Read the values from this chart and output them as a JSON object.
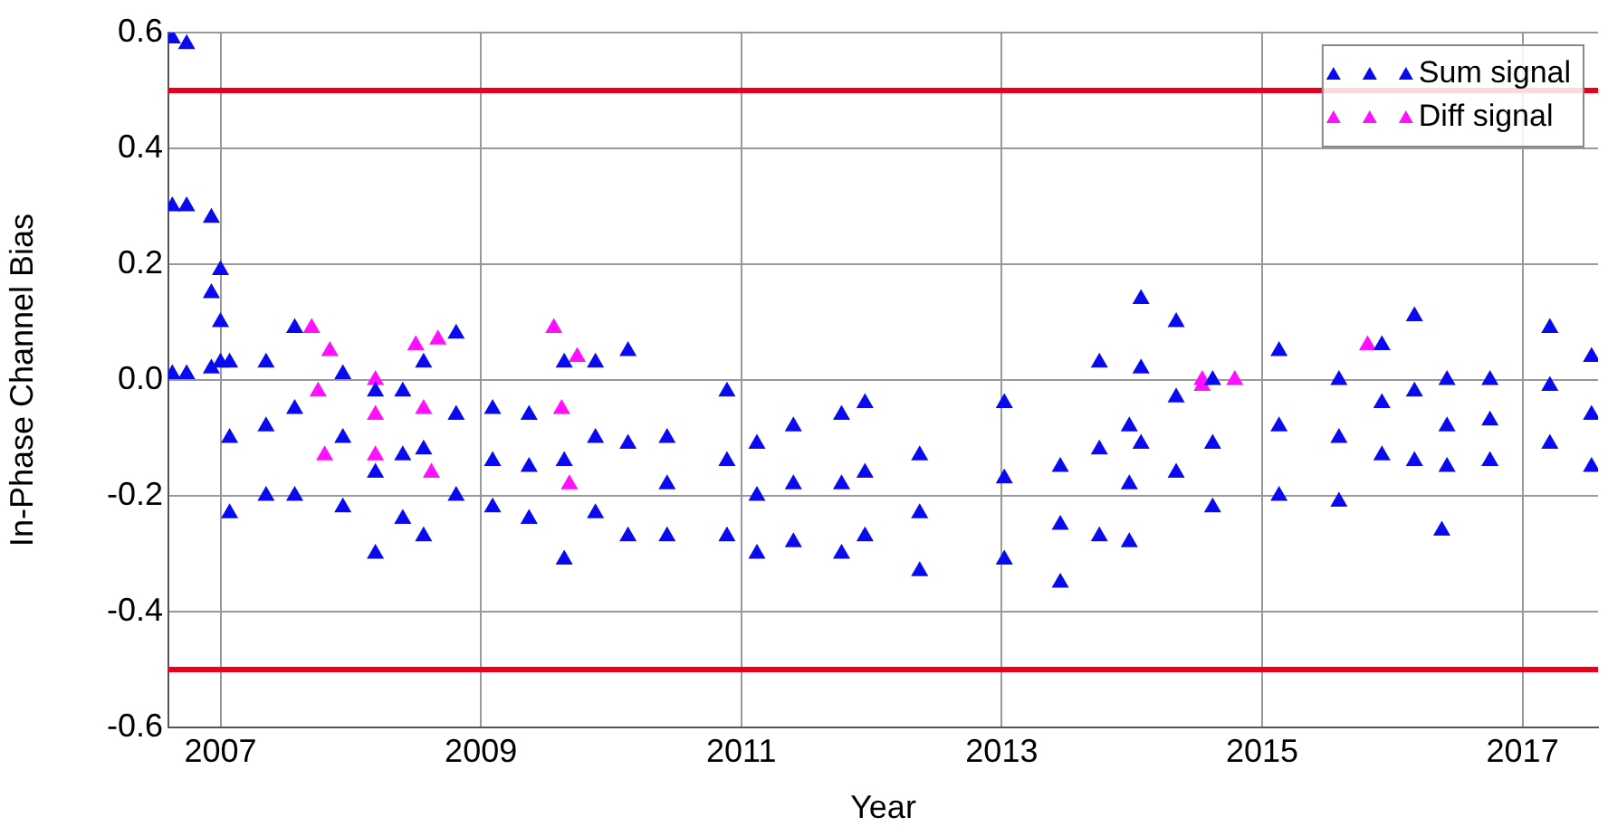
{
  "chart_data": {
    "type": "scatter",
    "xlabel": "Year",
    "ylabel": "In-Phase Channel Bias",
    "xlim": [
      2006.6,
      2017.58
    ],
    "xticks": [
      2007,
      2009,
      2011,
      2013,
      2015,
      2017
    ],
    "ylim": [
      -0.6,
      0.6
    ],
    "yticks": [
      -0.6,
      -0.4,
      -0.2,
      {
        "value": 0,
        "label": "0.0"
      },
      0.2,
      0.4,
      0.6
    ],
    "grid": true,
    "legend": "top right",
    "marker": "triangle",
    "ref_lines": [
      {
        "axis": "y",
        "value": 0.5,
        "color": "#e8001c"
      },
      {
        "axis": "y",
        "value": -0.5,
        "color": "#e8001c"
      }
    ],
    "series": [
      {
        "name": "Sum signal",
        "color": "#0a0af0",
        "x": [
          2006.63,
          2006.63,
          2006.63,
          2006.74,
          2006.74,
          2006.74,
          2006.93,
          2006.93,
          2006.93,
          2007.0,
          2007.0,
          2007.0,
          2007.07,
          2007.07,
          2007.07,
          2007.35,
          2007.35,
          2007.35,
          2007.57,
          2007.57,
          2007.57,
          2007.94,
          2007.94,
          2007.94,
          2008.19,
          2008.19,
          2008.19,
          2008.4,
          2008.4,
          2008.4,
          2008.56,
          2008.56,
          2008.56,
          2008.81,
          2008.81,
          2008.81,
          2009.09,
          2009.09,
          2009.09,
          2009.37,
          2009.37,
          2009.37,
          2009.64,
          2009.64,
          2009.64,
          2009.88,
          2009.88,
          2009.88,
          2010.13,
          2010.13,
          2010.13,
          2010.43,
          2010.43,
          2010.43,
          2010.89,
          2010.89,
          2010.89,
          2011.12,
          2011.12,
          2011.12,
          2011.4,
          2011.4,
          2011.4,
          2011.77,
          2011.77,
          2011.77,
          2011.95,
          2011.95,
          2011.95,
          2012.37,
          2012.37,
          2012.37,
          2013.02,
          2013.02,
          2013.02,
          2013.45,
          2013.45,
          2013.45,
          2013.75,
          2013.75,
          2013.75,
          2013.98,
          2013.98,
          2013.98,
          2014.07,
          2014.07,
          2014.07,
          2014.34,
          2014.34,
          2014.34,
          2014.62,
          2014.62,
          2014.62,
          2015.13,
          2015.13,
          2015.13,
          2015.59,
          2015.59,
          2015.59,
          2015.92,
          2015.92,
          2015.92,
          2016.17,
          2016.17,
          2016.17,
          2016.42,
          2016.42,
          2016.42,
          2016.75,
          2016.75,
          2016.75,
          2017.21,
          2017.21,
          2017.21,
          2017.53,
          2017.53,
          2017.53,
          2016.38
        ],
        "values": [
          0.59,
          0.3,
          0.01,
          0.58,
          0.3,
          0.01,
          0.28,
          0.15,
          0.02,
          0.19,
          0.1,
          0.03,
          0.03,
          -0.1,
          -0.23,
          0.03,
          -0.08,
          -0.2,
          0.09,
          -0.05,
          -0.2,
          0.01,
          -0.1,
          -0.22,
          -0.02,
          -0.16,
          -0.3,
          -0.02,
          -0.13,
          -0.24,
          0.03,
          -0.12,
          -0.27,
          0.08,
          -0.06,
          -0.2,
          -0.05,
          -0.14,
          -0.22,
          -0.06,
          -0.15,
          -0.24,
          0.03,
          -0.14,
          -0.31,
          0.03,
          -0.1,
          -0.23,
          0.05,
          -0.11,
          -0.27,
          -0.1,
          -0.18,
          -0.27,
          -0.02,
          -0.14,
          -0.27,
          -0.11,
          -0.2,
          -0.3,
          -0.08,
          -0.18,
          -0.28,
          -0.06,
          -0.18,
          -0.3,
          -0.04,
          -0.16,
          -0.27,
          -0.13,
          -0.23,
          -0.33,
          -0.04,
          -0.17,
          -0.31,
          -0.15,
          -0.25,
          -0.35,
          0.03,
          -0.12,
          -0.27,
          -0.08,
          -0.18,
          -0.28,
          0.14,
          0.02,
          -0.11,
          0.1,
          -0.03,
          -0.16,
          0.0,
          -0.11,
          -0.22,
          0.05,
          -0.08,
          -0.2,
          0.0,
          -0.1,
          -0.21,
          0.06,
          -0.04,
          -0.13,
          0.11,
          -0.02,
          -0.14,
          0.0,
          -0.08,
          -0.15,
          0.0,
          -0.07,
          -0.14,
          0.09,
          -0.01,
          -0.11,
          0.04,
          -0.06,
          -0.15,
          -0.26
        ]
      },
      {
        "name": "Diff signal",
        "color": "#ff10ff",
        "x": [
          2007.7,
          2007.75,
          2007.8,
          2007.84,
          2008.19,
          2008.19,
          2008.19,
          2008.5,
          2008.56,
          2008.62,
          2008.67,
          2009.56,
          2009.62,
          2009.68,
          2009.74,
          2014.54,
          2014.54,
          2014.79,
          2015.81
        ],
        "values": [
          0.09,
          -0.02,
          -0.13,
          0.05,
          0.0,
          -0.06,
          -0.13,
          0.06,
          -0.05,
          -0.16,
          0.07,
          0.09,
          -0.05,
          -0.18,
          0.04,
          0.0,
          -0.01,
          0.0,
          0.06
        ]
      }
    ]
  }
}
